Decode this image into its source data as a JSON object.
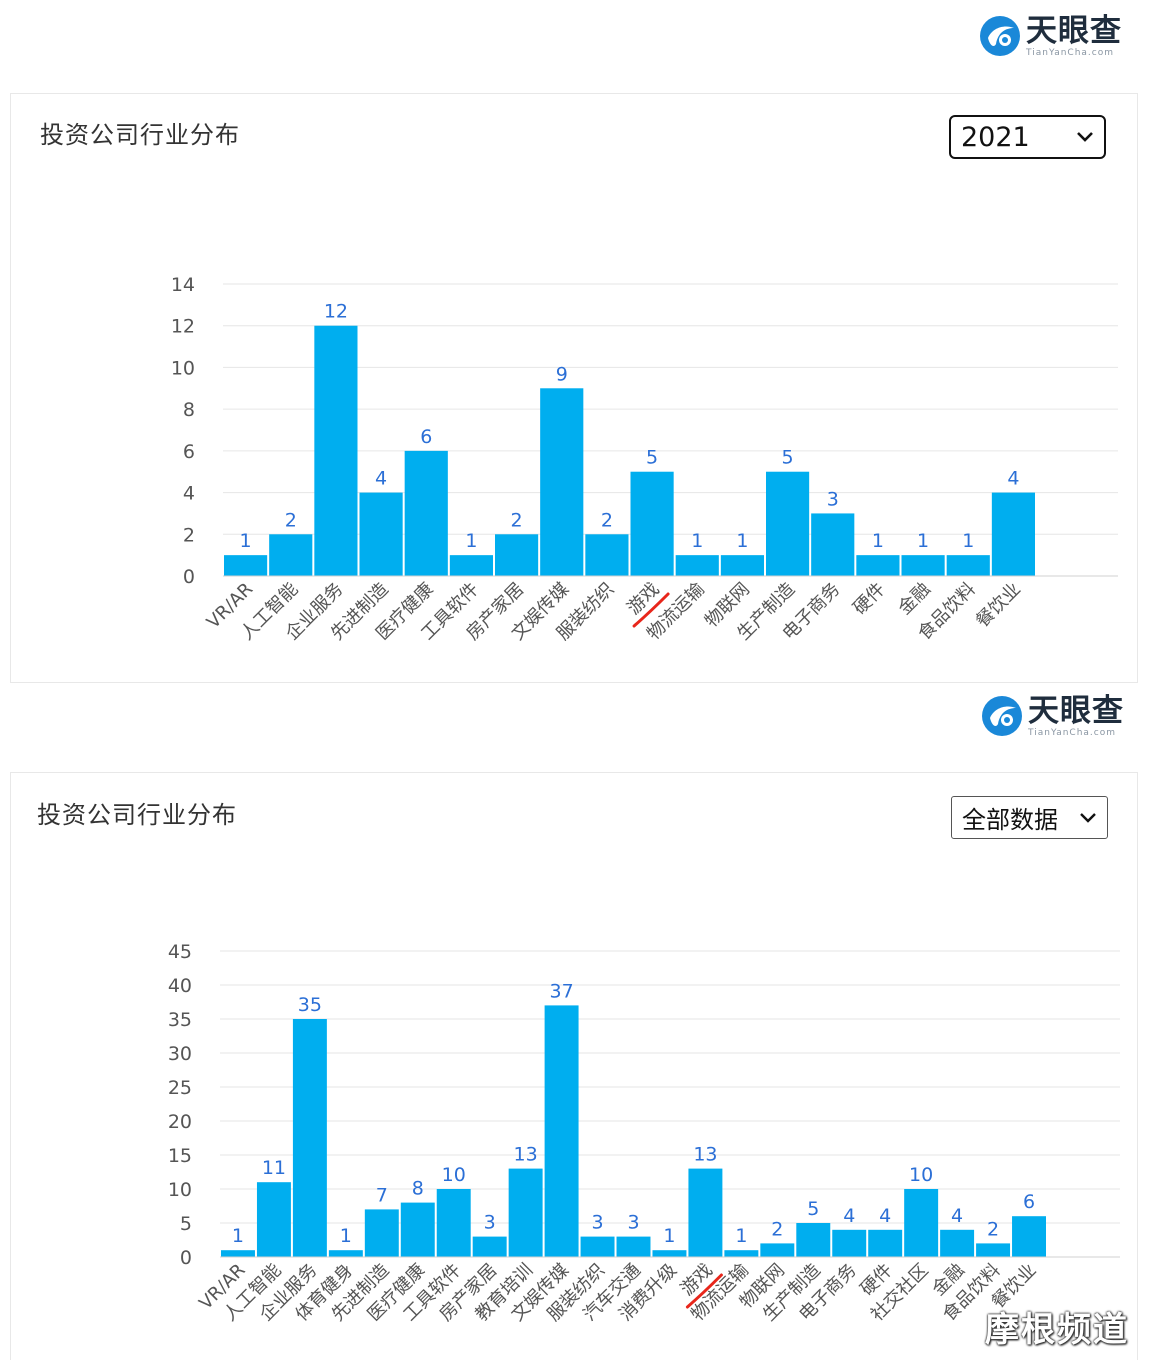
{
  "brand": {
    "name": "天眼查",
    "name_en": "TianYanCha.com",
    "color": "#1a88d8"
  },
  "colors": {
    "bar": "#00aeef",
    "value_label": "#2b6fd6",
    "axis_text": "#555555",
    "grid": "#e6e6e6",
    "annotation": "#e8261b"
  },
  "panels": [
    {
      "title": "投资公司行业分布",
      "selected_option": "2021"
    },
    {
      "title": "投资公司行业分布",
      "selected_option": "全部数据"
    }
  ],
  "watermark": "摩根频道",
  "chart_data": [
    {
      "type": "bar",
      "title": "投资公司行业分布",
      "filter": "2021",
      "ylim": [
        0,
        14
      ],
      "yticks": [
        0,
        2,
        4,
        6,
        8,
        10,
        12,
        14
      ],
      "grid": true,
      "data_labels": true,
      "categories": [
        "VR/AR",
        "人工智能",
        "企业服务",
        "先进制造",
        "医疗健康",
        "工具软件",
        "房产家居",
        "文娱传媒",
        "服装纺织",
        "游戏",
        "物流运输",
        "物联网",
        "生产制造",
        "电子商务",
        "硬件",
        "金融",
        "食品饮料",
        "餐饮业"
      ],
      "values": [
        1,
        2,
        12,
        4,
        6,
        1,
        2,
        9,
        2,
        5,
        1,
        1,
        5,
        3,
        1,
        1,
        1,
        4
      ],
      "highlight": "游戏"
    },
    {
      "type": "bar",
      "title": "投资公司行业分布",
      "filter": "全部数据",
      "ylim": [
        0,
        45
      ],
      "yticks": [
        0,
        5,
        10,
        15,
        20,
        25,
        30,
        35,
        40,
        45
      ],
      "grid": true,
      "data_labels": true,
      "categories": [
        "VR/AR",
        "人工智能",
        "企业服务",
        "体育健身",
        "先进制造",
        "医疗健康",
        "工具软件",
        "房产家居",
        "教育培训",
        "文娱传媒",
        "服装纺织",
        "汽车交通",
        "消费升级",
        "游戏",
        "物流运输",
        "物联网",
        "生产制造",
        "电子商务",
        "硬件",
        "社交社区",
        "金融",
        "食品饮料",
        "餐饮业"
      ],
      "values": [
        1,
        11,
        35,
        1,
        7,
        8,
        10,
        3,
        13,
        37,
        3,
        3,
        1,
        13,
        1,
        2,
        5,
        4,
        4,
        10,
        4,
        2,
        6
      ],
      "highlight": "游戏"
    }
  ]
}
